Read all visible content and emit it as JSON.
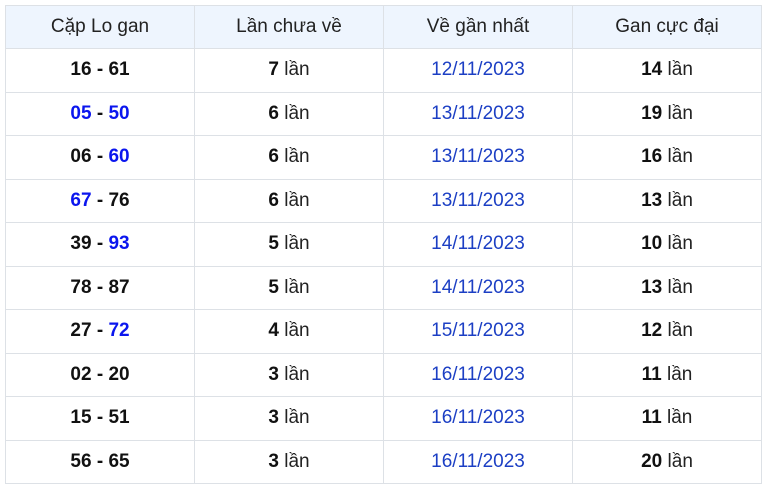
{
  "headers": [
    "Cặp Lo gan",
    "Lần chưa về",
    "Về gần nhất",
    "Gan cực đại"
  ],
  "unit": "lần",
  "colors": {
    "highlight": "#0b16ee",
    "date": "#1c3fc4",
    "header_bg": "#eef5fe"
  },
  "rows": [
    {
      "a": "16",
      "b": "61",
      "a_hl": false,
      "b_hl": false,
      "count": "7",
      "last": "12/11/2023",
      "max": "14"
    },
    {
      "a": "05",
      "b": "50",
      "a_hl": true,
      "b_hl": true,
      "count": "6",
      "last": "13/11/2023",
      "max": "19"
    },
    {
      "a": "06",
      "b": "60",
      "a_hl": false,
      "b_hl": true,
      "count": "6",
      "last": "13/11/2023",
      "max": "16"
    },
    {
      "a": "67",
      "b": "76",
      "a_hl": true,
      "b_hl": false,
      "count": "6",
      "last": "13/11/2023",
      "max": "13"
    },
    {
      "a": "39",
      "b": "93",
      "a_hl": false,
      "b_hl": true,
      "count": "5",
      "last": "14/11/2023",
      "max": "10"
    },
    {
      "a": "78",
      "b": "87",
      "a_hl": false,
      "b_hl": false,
      "count": "5",
      "last": "14/11/2023",
      "max": "13"
    },
    {
      "a": "27",
      "b": "72",
      "a_hl": false,
      "b_hl": true,
      "count": "4",
      "last": "15/11/2023",
      "max": "12"
    },
    {
      "a": "02",
      "b": "20",
      "a_hl": false,
      "b_hl": false,
      "count": "3",
      "last": "16/11/2023",
      "max": "11"
    },
    {
      "a": "15",
      "b": "51",
      "a_hl": false,
      "b_hl": false,
      "count": "3",
      "last": "16/11/2023",
      "max": "11"
    },
    {
      "a": "56",
      "b": "65",
      "a_hl": false,
      "b_hl": false,
      "count": "3",
      "last": "16/11/2023",
      "max": "20"
    }
  ]
}
